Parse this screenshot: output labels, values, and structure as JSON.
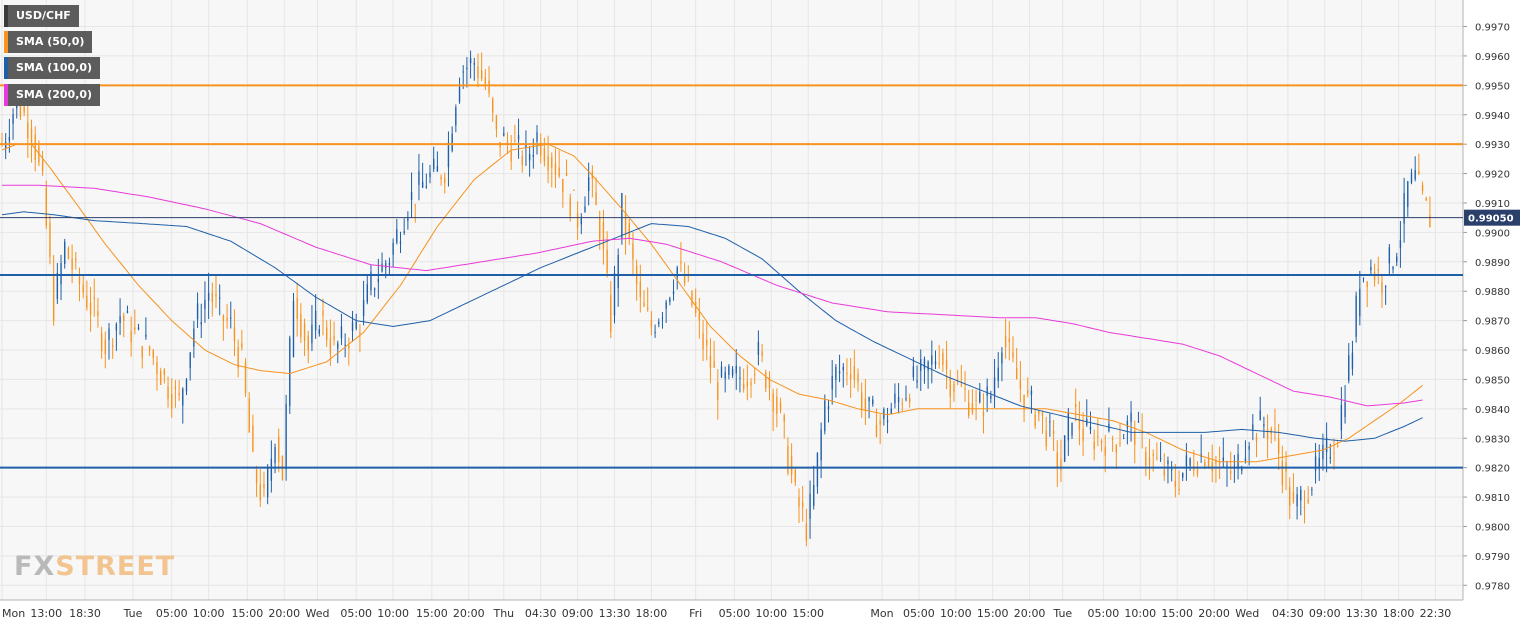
{
  "chart_data": {
    "type": "candlestick",
    "symbol": "USD/CHF",
    "indicators": [
      {
        "name": "SMA (50,0)",
        "color": "#f7931e"
      },
      {
        "name": "SMA (100,0)",
        "color": "#1f5fa8"
      },
      {
        "name": "SMA (200,0)",
        "color": "#e83ad9"
      }
    ],
    "last_price": "0.99050",
    "y_ticks": [
      "0.9970",
      "0.9960",
      "0.9950",
      "0.9940",
      "0.9930",
      "0.9920",
      "0.9910",
      "0.9900",
      "0.9890",
      "0.9880",
      "0.9870",
      "0.9860",
      "0.9850",
      "0.9840",
      "0.9830",
      "0.9820",
      "0.9810",
      "0.9800",
      "0.9790",
      "0.9780"
    ],
    "ylim": [
      0.9775,
      0.9978
    ],
    "x_ticks": [
      "Mon",
      "13:00",
      "18:30",
      "Tue",
      "05:00",
      "10:00",
      "15:00",
      "20:00",
      "Wed",
      "05:00",
      "10:00",
      "15:00",
      "20:00",
      "Thu",
      "04:30",
      "09:00",
      "13:30",
      "18:00",
      "Fri",
      "05:00",
      "10:00",
      "15:00",
      "Mon",
      "05:00",
      "10:00",
      "15:00",
      "20:00",
      "Tue",
      "05:00",
      "10:00",
      "15:00",
      "20:00",
      "Wed",
      "04:30",
      "09:00",
      "13:30",
      "18:00",
      "22:30"
    ],
    "x_tick_index": [
      0,
      24,
      45,
      71,
      92,
      112,
      133,
      153,
      171,
      192,
      212,
      233,
      253,
      272,
      292,
      312,
      332,
      352,
      376,
      397,
      417,
      437,
      477,
      497,
      517,
      537,
      557,
      575,
      597,
      617,
      637,
      657,
      675,
      697,
      717,
      737,
      757,
      777
    ],
    "n_bars": 780,
    "horizontal_levels": [
      {
        "value": 0.995,
        "color": "#f7931e"
      },
      {
        "value": 0.993,
        "color": "#f7931e"
      },
      {
        "value": 0.98855,
        "color": "#1f5fa8"
      },
      {
        "value": 0.982,
        "color": "#1f5fa8"
      },
      {
        "value": 0.9905,
        "color": "#2b3f6b"
      }
    ],
    "price_path": [
      [
        0,
        0.993
      ],
      [
        8,
        0.9945
      ],
      [
        16,
        0.9935
      ],
      [
        22,
        0.9915
      ],
      [
        28,
        0.9875
      ],
      [
        34,
        0.9895
      ],
      [
        40,
        0.9885
      ],
      [
        48,
        0.9875
      ],
      [
        56,
        0.9862
      ],
      [
        64,
        0.9872
      ],
      [
        72,
        0.9865
      ],
      [
        80,
        0.986
      ],
      [
        88,
        0.985
      ],
      [
        96,
        0.9842
      ],
      [
        104,
        0.9868
      ],
      [
        112,
        0.988
      ],
      [
        118,
        0.9872
      ],
      [
        124,
        0.9868
      ],
      [
        130,
        0.9855
      ],
      [
        136,
        0.982
      ],
      [
        142,
        0.9808
      ],
      [
        148,
        0.9832
      ],
      [
        152,
        0.9818
      ],
      [
        158,
        0.988
      ],
      [
        166,
        0.986
      ],
      [
        172,
        0.9872
      ],
      [
        180,
        0.986
      ],
      [
        188,
        0.9865
      ],
      [
        194,
        0.987
      ],
      [
        200,
        0.9882
      ],
      [
        210,
        0.9892
      ],
      [
        220,
        0.991
      ],
      [
        230,
        0.9918
      ],
      [
        240,
        0.9922
      ],
      [
        248,
        0.9955
      ],
      [
        256,
        0.9958
      ],
      [
        262,
        0.995
      ],
      [
        268,
        0.9932
      ],
      [
        276,
        0.993
      ],
      [
        284,
        0.9925
      ],
      [
        290,
        0.9933
      ],
      [
        298,
        0.9925
      ],
      [
        304,
        0.9918
      ],
      [
        312,
        0.9905
      ],
      [
        318,
        0.9918
      ],
      [
        324,
        0.9902
      ],
      [
        330,
        0.987
      ],
      [
        336,
        0.9908
      ],
      [
        340,
        0.9895
      ],
      [
        346,
        0.9875
      ],
      [
        352,
        0.9868
      ],
      [
        358,
        0.9875
      ],
      [
        366,
        0.9888
      ],
      [
        372,
        0.988
      ],
      [
        380,
        0.9862
      ],
      [
        388,
        0.9848
      ],
      [
        396,
        0.985
      ],
      [
        404,
        0.9852
      ],
      [
        410,
        0.9858
      ],
      [
        418,
        0.9845
      ],
      [
        424,
        0.983
      ],
      [
        430,
        0.981
      ],
      [
        436,
        0.98
      ],
      [
        440,
        0.9812
      ],
      [
        446,
        0.9842
      ],
      [
        452,
        0.9852
      ],
      [
        460,
        0.9855
      ],
      [
        468,
        0.984
      ],
      [
        476,
        0.9835
      ],
      [
        484,
        0.9842
      ],
      [
        492,
        0.9848
      ],
      [
        500,
        0.9852
      ],
      [
        508,
        0.986
      ],
      [
        514,
        0.985
      ],
      [
        522,
        0.9845
      ],
      [
        528,
        0.984
      ],
      [
        536,
        0.9845
      ],
      [
        542,
        0.9865
      ],
      [
        550,
        0.985
      ],
      [
        556,
        0.9842
      ],
      [
        562,
        0.9838
      ],
      [
        568,
        0.983
      ],
      [
        574,
        0.982
      ],
      [
        580,
        0.984
      ],
      [
        586,
        0.9832
      ],
      [
        594,
        0.983
      ],
      [
        604,
        0.983
      ],
      [
        612,
        0.9835
      ],
      [
        620,
        0.9825
      ],
      [
        628,
        0.982
      ],
      [
        636,
        0.9815
      ],
      [
        644,
        0.9822
      ],
      [
        652,
        0.9825
      ],
      [
        660,
        0.982
      ],
      [
        668,
        0.9818
      ],
      [
        676,
        0.9832
      ],
      [
        684,
        0.9835
      ],
      [
        690,
        0.983
      ],
      [
        696,
        0.9815
      ],
      [
        700,
        0.9805
      ],
      [
        706,
        0.9812
      ],
      [
        712,
        0.9818
      ],
      [
        718,
        0.9825
      ],
      [
        724,
        0.9832
      ],
      [
        728,
        0.9848
      ],
      [
        732,
        0.9862
      ],
      [
        736,
        0.9885
      ],
      [
        742,
        0.9888
      ],
      [
        748,
        0.9884
      ],
      [
        754,
        0.9892
      ],
      [
        758,
        0.99
      ],
      [
        762,
        0.9915
      ],
      [
        766,
        0.9918
      ],
      [
        770,
        0.991
      ],
      [
        774,
        0.9905
      ]
    ],
    "sma50_path": [
      [
        0,
        0.9928
      ],
      [
        8,
        0.993
      ],
      [
        16,
        0.993
      ],
      [
        26,
        0.9922
      ],
      [
        40,
        0.991
      ],
      [
        56,
        0.9896
      ],
      [
        74,
        0.9882
      ],
      [
        92,
        0.987
      ],
      [
        110,
        0.986
      ],
      [
        126,
        0.9855
      ],
      [
        140,
        0.9853
      ],
      [
        156,
        0.9852
      ],
      [
        176,
        0.9856
      ],
      [
        196,
        0.9866
      ],
      [
        216,
        0.9882
      ],
      [
        236,
        0.9902
      ],
      [
        256,
        0.9918
      ],
      [
        276,
        0.9928
      ],
      [
        296,
        0.993
      ],
      [
        310,
        0.9926
      ],
      [
        322,
        0.9918
      ],
      [
        336,
        0.9908
      ],
      [
        352,
        0.9896
      ],
      [
        368,
        0.9882
      ],
      [
        384,
        0.9868
      ],
      [
        400,
        0.9858
      ],
      [
        416,
        0.985
      ],
      [
        432,
        0.9845
      ],
      [
        448,
        0.9843
      ],
      [
        464,
        0.984
      ],
      [
        480,
        0.9838
      ],
      [
        496,
        0.984
      ],
      [
        512,
        0.984
      ],
      [
        530,
        0.984
      ],
      [
        548,
        0.984
      ],
      [
        566,
        0.984
      ],
      [
        584,
        0.9838
      ],
      [
        602,
        0.9836
      ],
      [
        620,
        0.9832
      ],
      [
        640,
        0.9826
      ],
      [
        660,
        0.9822
      ],
      [
        680,
        0.9822
      ],
      [
        698,
        0.9824
      ],
      [
        716,
        0.9826
      ],
      [
        730,
        0.983
      ],
      [
        744,
        0.9836
      ],
      [
        758,
        0.9842
      ],
      [
        770,
        0.9848
      ]
    ],
    "sma100_path": [
      [
        0,
        0.9906
      ],
      [
        12,
        0.9907
      ],
      [
        28,
        0.9906
      ],
      [
        50,
        0.9904
      ],
      [
        76,
        0.9903
      ],
      [
        100,
        0.9902
      ],
      [
        124,
        0.9897
      ],
      [
        148,
        0.9888
      ],
      [
        170,
        0.9878
      ],
      [
        192,
        0.987
      ],
      [
        212,
        0.9868
      ],
      [
        232,
        0.987
      ],
      [
        252,
        0.9876
      ],
      [
        272,
        0.9882
      ],
      [
        292,
        0.9888
      ],
      [
        312,
        0.9893
      ],
      [
        332,
        0.9898
      ],
      [
        352,
        0.9903
      ],
      [
        372,
        0.9902
      ],
      [
        392,
        0.9898
      ],
      [
        412,
        0.9891
      ],
      [
        432,
        0.988
      ],
      [
        452,
        0.987
      ],
      [
        472,
        0.9863
      ],
      [
        492,
        0.9857
      ],
      [
        512,
        0.9851
      ],
      [
        532,
        0.9846
      ],
      [
        552,
        0.9841
      ],
      [
        572,
        0.9838
      ],
      [
        592,
        0.9835
      ],
      [
        612,
        0.9832
      ],
      [
        632,
        0.9832
      ],
      [
        652,
        0.9832
      ],
      [
        672,
        0.9833
      ],
      [
        692,
        0.9832
      ],
      [
        712,
        0.983
      ],
      [
        728,
        0.9829
      ],
      [
        744,
        0.983
      ],
      [
        760,
        0.9834
      ],
      [
        770,
        0.9837
      ]
    ],
    "sma200_path": [
      [
        0,
        0.9916
      ],
      [
        20,
        0.9916
      ],
      [
        50,
        0.9915
      ],
      [
        80,
        0.9912
      ],
      [
        110,
        0.9908
      ],
      [
        140,
        0.9903
      ],
      [
        170,
        0.9895
      ],
      [
        200,
        0.9889
      ],
      [
        230,
        0.9887
      ],
      [
        260,
        0.989
      ],
      [
        290,
        0.9893
      ],
      [
        320,
        0.9897
      ],
      [
        340,
        0.9898
      ],
      [
        360,
        0.9896
      ],
      [
        390,
        0.989
      ],
      [
        420,
        0.9882
      ],
      [
        450,
        0.9876
      ],
      [
        480,
        0.9873
      ],
      [
        510,
        0.9872
      ],
      [
        540,
        0.9871
      ],
      [
        560,
        0.9871
      ],
      [
        580,
        0.9869
      ],
      [
        600,
        0.9866
      ],
      [
        620,
        0.9864
      ],
      [
        640,
        0.9862
      ],
      [
        660,
        0.9858
      ],
      [
        680,
        0.9852
      ],
      [
        700,
        0.9846
      ],
      [
        720,
        0.9844
      ],
      [
        740,
        0.9841
      ],
      [
        760,
        0.9842
      ],
      [
        770,
        0.9843
      ]
    ],
    "watermark": {
      "part1": "FX",
      "part2": "STREET"
    }
  }
}
